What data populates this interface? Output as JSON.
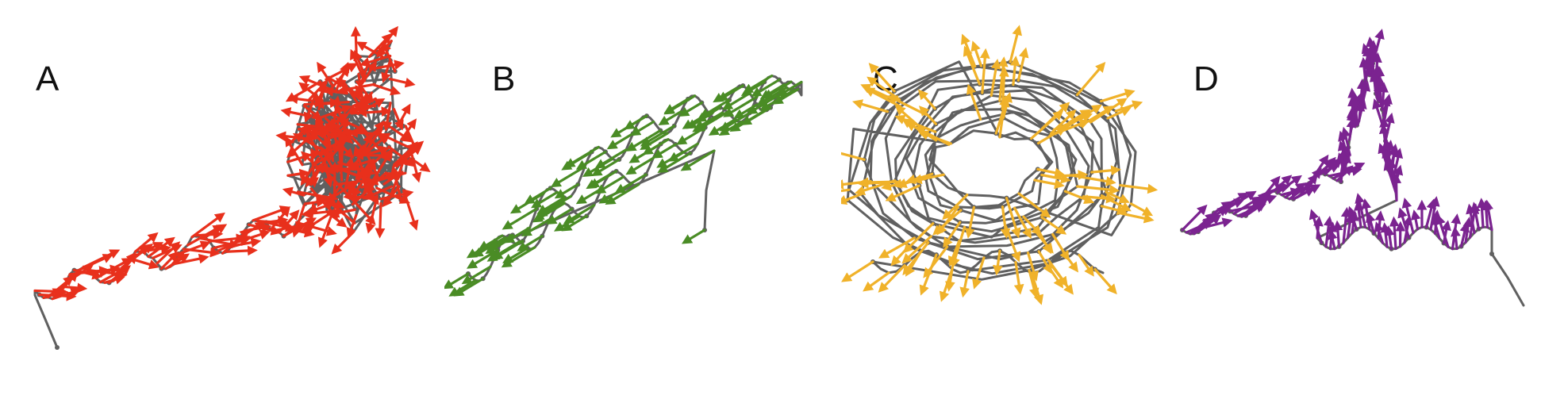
{
  "panels": [
    {
      "label": "A",
      "color": "#e8301c"
    },
    {
      "label": "B",
      "color": "#4a8c25"
    },
    {
      "label": "C",
      "color": "#f0b22a"
    },
    {
      "label": "D",
      "color": "#7b2390"
    }
  ],
  "backbone_color": "#606060"
}
